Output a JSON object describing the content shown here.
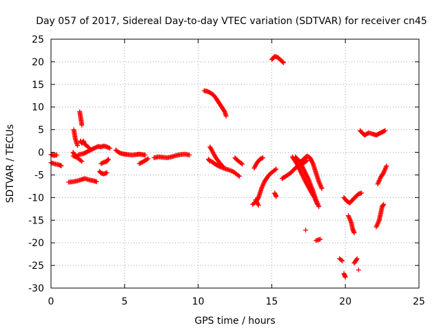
{
  "chart_data": {
    "type": "scatter",
    "title": "Day 057 of 2017, Sidereal Day-to-day VTEC variation (SDTVAR) for receiver cn45",
    "xlabel": "GPS time / hours",
    "ylabel": "SDTVAR / TECUs",
    "xlim": [
      0,
      25
    ],
    "ylim": [
      -30,
      25
    ],
    "xticks": [
      0,
      5,
      10,
      15,
      20,
      25
    ],
    "yticks": [
      -30,
      -25,
      -20,
      -15,
      -10,
      -5,
      0,
      5,
      10,
      15,
      20,
      25
    ],
    "grid": true,
    "marker": "plus",
    "color": "#ff0000",
    "series": [
      {
        "segments": [
          [
            [
              0.0,
              -0.5
            ],
            [
              0.2,
              -0.7
            ],
            [
              0.4,
              -0.6
            ]
          ],
          [
            [
              0.0,
              -2.3
            ],
            [
              0.3,
              -2.6
            ],
            [
              0.6,
              -2.8
            ],
            [
              0.7,
              -3.0
            ]
          ],
          [
            [
              1.2,
              -6.6
            ],
            [
              1.5,
              -6.5
            ],
            [
              1.8,
              -6.3
            ],
            [
              2.1,
              -6.0
            ],
            [
              2.3,
              -5.8
            ],
            [
              2.6,
              -6.1
            ],
            [
              2.9,
              -6.3
            ],
            [
              3.1,
              -6.5
            ]
          ],
          [
            [
              1.5,
              -0.8
            ],
            [
              1.7,
              -1.0
            ],
            [
              1.9,
              -0.5
            ],
            [
              2.2,
              -0.3
            ],
            [
              2.5,
              0.2
            ],
            [
              2.8,
              0.7
            ],
            [
              3.0,
              1.0
            ],
            [
              3.2,
              1.3
            ],
            [
              3.4,
              1.2
            ],
            [
              3.6,
              1.4
            ],
            [
              3.8,
              1.2
            ],
            [
              4.0,
              0.9
            ]
          ],
          [
            [
              1.5,
              0.0
            ],
            [
              1.7,
              -1.0
            ],
            [
              1.9,
              -1.5
            ],
            [
              2.1,
              -2.0
            ]
          ],
          [
            [
              1.55,
              5.0
            ],
            [
              1.6,
              4.0
            ],
            [
              1.65,
              3.0
            ],
            [
              1.7,
              2.5
            ],
            [
              1.75,
              2.0
            ],
            [
              1.8,
              1.5
            ]
          ],
          [
            [
              1.95,
              9.0
            ],
            [
              2.0,
              8.0
            ],
            [
              2.05,
              7.0
            ],
            [
              2.1,
              6.0
            ]
          ],
          [
            [
              2.0,
              2.5
            ],
            [
              2.1,
              2.0
            ],
            [
              2.2,
              2.5
            ],
            [
              2.3,
              1.8
            ],
            [
              2.4,
              1.5
            ],
            [
              2.6,
              1.0
            ]
          ],
          [
            [
              3.3,
              -4.2
            ],
            [
              3.4,
              -4.6
            ],
            [
              3.6,
              -4.8
            ],
            [
              3.8,
              -4.5
            ]
          ],
          [
            [
              3.4,
              -2.5
            ],
            [
              3.6,
              -2.2
            ],
            [
              3.8,
              -2.0
            ],
            [
              3.9,
              -1.5
            ]
          ],
          [
            [
              4.4,
              0.5
            ],
            [
              4.6,
              0.0
            ],
            [
              4.8,
              -0.3
            ],
            [
              5.0,
              -0.4
            ],
            [
              5.2,
              -0.5
            ],
            [
              5.5,
              -0.6
            ],
            [
              5.8,
              -0.5
            ],
            [
              6.0,
              -0.4
            ],
            [
              6.2,
              -0.5
            ],
            [
              6.4,
              -0.6
            ]
          ],
          [
            [
              6.0,
              -2.5
            ],
            [
              6.2,
              -2.2
            ],
            [
              6.4,
              -1.8
            ],
            [
              6.6,
              -1.4
            ]
          ],
          [
            [
              7.0,
              -1.2
            ],
            [
              7.3,
              -1.0
            ],
            [
              7.6,
              -1.1
            ],
            [
              7.9,
              -1.2
            ],
            [
              8.2,
              -1.0
            ],
            [
              8.5,
              -0.7
            ],
            [
              8.8,
              -0.5
            ],
            [
              9.1,
              -0.4
            ],
            [
              9.4,
              -0.6
            ]
          ],
          [
            [
              10.4,
              13.6
            ],
            [
              10.6,
              13.5
            ],
            [
              10.8,
              13.2
            ],
            [
              11.0,
              12.8
            ],
            [
              11.2,
              12.0
            ],
            [
              11.4,
              11.0
            ],
            [
              11.6,
              10.0
            ],
            [
              11.8,
              9.0
            ],
            [
              11.9,
              8.0
            ]
          ],
          [
            [
              10.8,
              1.2
            ],
            [
              11.0,
              0.0
            ],
            [
              11.2,
              -1.2
            ],
            [
              11.5,
              -2.5
            ],
            [
              11.7,
              -3.2
            ]
          ],
          [
            [
              10.9,
              -2.0
            ],
            [
              11.2,
              -2.7
            ],
            [
              11.5,
              -3.2
            ],
            [
              11.8,
              -3.6
            ],
            [
              12.1,
              -3.9
            ],
            [
              12.4,
              -4.3
            ],
            [
              12.6,
              -4.8
            ],
            [
              12.8,
              -5.3
            ]
          ],
          [
            [
              10.7,
              -1.5
            ],
            [
              10.8,
              -2.0
            ]
          ],
          [
            [
              12.5,
              -1.2
            ],
            [
              12.6,
              -1.6
            ],
            [
              12.8,
              -2.1
            ],
            [
              13.0,
              -2.6
            ]
          ],
          [
            [
              13.7,
              -11.5
            ],
            [
              13.9,
              -11.0
            ],
            [
              14.1,
              -10.0
            ],
            [
              14.3,
              -8.0
            ],
            [
              14.5,
              -6.5
            ],
            [
              14.7,
              -5.5
            ],
            [
              14.9,
              -4.7
            ],
            [
              15.1,
              -4.2
            ],
            [
              15.3,
              -3.7
            ]
          ],
          [
            [
              13.8,
              -3.5
            ],
            [
              14.0,
              -2.3
            ],
            [
              14.2,
              -1.5
            ],
            [
              14.4,
              -1.2
            ]
          ],
          [
            [
              13.9,
              -10.5
            ],
            [
              14.1,
              -11.7
            ]
          ],
          [
            [
              15.0,
              20.5
            ],
            [
              15.2,
              21.2
            ],
            [
              15.4,
              21.0
            ],
            [
              15.6,
              20.4
            ],
            [
              15.8,
              19.8
            ]
          ],
          [
            [
              15.2,
              -9.0
            ],
            [
              15.3,
              -9.8
            ]
          ],
          [
            [
              15.7,
              -5.8
            ],
            [
              16.0,
              -5.2
            ],
            [
              16.3,
              -4.5
            ],
            [
              16.6,
              -3.5
            ],
            [
              16.9,
              -2.8
            ],
            [
              17.2,
              -2.3
            ],
            [
              17.4,
              -1.8
            ]
          ],
          [
            [
              16.6,
              -1.0
            ],
            [
              16.9,
              -2.0
            ],
            [
              17.2,
              -4.0
            ],
            [
              17.5,
              -6.0
            ],
            [
              17.8,
              -8.5
            ],
            [
              18.0,
              -10.5
            ],
            [
              18.2,
              -12.0
            ]
          ],
          [
            [
              16.4,
              -1.0
            ],
            [
              16.7,
              -2.5
            ],
            [
              17.0,
              -4.5
            ],
            [
              17.3,
              -6.5
            ],
            [
              17.6,
              -8.3
            ],
            [
              17.9,
              -10.0
            ],
            [
              18.1,
              -11.5
            ]
          ],
          [
            [
              17.0,
              -2.0
            ],
            [
              17.2,
              -1.4
            ],
            [
              17.4,
              -0.8
            ],
            [
              17.6,
              -1.2
            ],
            [
              17.8,
              -2.5
            ],
            [
              18.0,
              -4.5
            ],
            [
              18.2,
              -6.5
            ],
            [
              18.4,
              -8.0
            ]
          ],
          [
            [
              17.3,
              -17.2
            ]
          ],
          [
            [
              18.0,
              -19.5
            ],
            [
              18.3,
              -19.2
            ]
          ],
          [
            [
              19.6,
              -23.5
            ],
            [
              19.8,
              -24.0
            ]
          ],
          [
            [
              19.9,
              -26.8
            ],
            [
              20.0,
              -27.6
            ]
          ],
          [
            [
              19.9,
              -10.0
            ],
            [
              20.1,
              -10.8
            ],
            [
              20.3,
              -11.2
            ],
            [
              20.5,
              -10.5
            ],
            [
              20.7,
              -9.8
            ],
            [
              20.9,
              -9.2
            ],
            [
              21.1,
              -9.0
            ]
          ],
          [
            [
              20.2,
              -14.0
            ],
            [
              20.4,
              -15.5
            ],
            [
              20.5,
              -17.0
            ],
            [
              20.6,
              -17.8
            ]
          ],
          [
            [
              20.6,
              -24.5
            ],
            [
              20.8,
              -23.5
            ]
          ],
          [
            [
              20.9,
              -26.0
            ]
          ],
          [
            [
              21.0,
              4.8
            ],
            [
              21.3,
              3.8
            ],
            [
              21.6,
              4.3
            ],
            [
              21.9,
              4.0
            ],
            [
              22.1,
              3.8
            ],
            [
              22.4,
              4.3
            ],
            [
              22.7,
              4.8
            ]
          ],
          [
            [
              22.1,
              -16.5
            ],
            [
              22.3,
              -15.0
            ],
            [
              22.4,
              -13.5
            ],
            [
              22.5,
              -12.0
            ],
            [
              22.6,
              -11.5
            ]
          ],
          [
            [
              22.2,
              -7.0
            ],
            [
              22.4,
              -5.5
            ],
            [
              22.6,
              -4.5
            ],
            [
              22.8,
              -3.0
            ]
          ]
        ]
      }
    ]
  }
}
